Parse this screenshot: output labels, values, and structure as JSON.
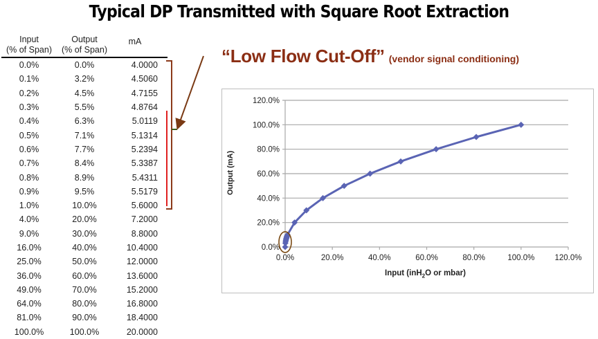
{
  "title": "Typical DP Transmitted with Square Root Extraction",
  "table": {
    "headers": [
      {
        "line1": "Input",
        "line2": "(% of Span)"
      },
      {
        "line1": "Output",
        "line2": "(% of Span)"
      },
      {
        "line1": "",
        "line2": "mA"
      }
    ],
    "rows": [
      [
        "0.0%",
        "0.0%",
        "4.0000"
      ],
      [
        "0.1%",
        "3.2%",
        "4.5060"
      ],
      [
        "0.2%",
        "4.5%",
        "4.7155"
      ],
      [
        "0.3%",
        "5.5%",
        "4.8764"
      ],
      [
        "0.4%",
        "6.3%",
        "5.0119"
      ],
      [
        "0.5%",
        "7.1%",
        "5.1314"
      ],
      [
        "0.6%",
        "7.7%",
        "5.2394"
      ],
      [
        "0.7%",
        "8.4%",
        "5.3387"
      ],
      [
        "0.8%",
        "8.9%",
        "5.4311"
      ],
      [
        "0.9%",
        "9.5%",
        "5.5179"
      ],
      [
        "1.0%",
        "10.0%",
        "5.6000"
      ],
      [
        "4.0%",
        "20.0%",
        "7.2000"
      ],
      [
        "9.0%",
        "30.0%",
        "8.8000"
      ],
      [
        "16.0%",
        "40.0%",
        "10.4000"
      ],
      [
        "25.0%",
        "50.0%",
        "12.0000"
      ],
      [
        "36.0%",
        "60.0%",
        "13.6000"
      ],
      [
        "49.0%",
        "70.0%",
        "15.2000"
      ],
      [
        "64.0%",
        "80.0%",
        "16.8000"
      ],
      [
        "81.0%",
        "90.0%",
        "18.4000"
      ],
      [
        "100.0%",
        "100.0%",
        "20.0000"
      ]
    ]
  },
  "annotation": {
    "main": "“Low Flow Cut-Off”",
    "sub": "(vendor signal conditioning)",
    "color": "#8b2e14"
  },
  "chart_data": {
    "type": "line",
    "title": "",
    "xlabel": "Input (inH2O or mbar)",
    "xlabel_main": "Input (inH",
    "xlabel_sub": "2",
    "xlabel_tail": "O or mbar)",
    "ylabel": "Output (mA)",
    "xlim": [
      0,
      120
    ],
    "ylim": [
      0,
      120
    ],
    "grid": true,
    "x_ticks": [
      "0.0%",
      "20.0%",
      "40.0%",
      "60.0%",
      "80.0%",
      "100.0%",
      "120.0%"
    ],
    "y_ticks": [
      "0.0%",
      "20.0%",
      "40.0%",
      "60.0%",
      "80.0%",
      "100.0%",
      "120.0%"
    ],
    "series": [
      {
        "name": "Output",
        "color": "#5a64b4",
        "marker": "diamond",
        "x": [
          0.0,
          0.1,
          0.2,
          0.3,
          0.4,
          0.5,
          0.6,
          0.7,
          0.8,
          0.9,
          1.0,
          4.0,
          9.0,
          16.0,
          25.0,
          36.0,
          49.0,
          64.0,
          81.0,
          100.0
        ],
        "y": [
          0.0,
          3.2,
          4.5,
          5.5,
          6.3,
          7.1,
          7.7,
          8.4,
          8.9,
          9.5,
          10.0,
          20.0,
          30.0,
          40.0,
          50.0,
          60.0,
          70.0,
          80.0,
          90.0,
          100.0
        ]
      }
    ],
    "annotations": [
      "Low-flow region circled near origin (0-1% input)"
    ]
  }
}
